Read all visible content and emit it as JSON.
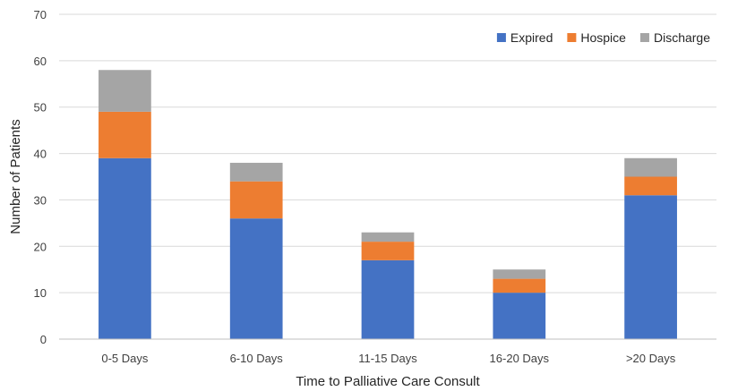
{
  "chart_data": {
    "type": "bar",
    "stacked": true,
    "categories": [
      "0-5 Days",
      "6-10 Days",
      "11-15 Days",
      "16-20 Days",
      ">20 Days"
    ],
    "series": [
      {
        "name": "Expired",
        "color": "#4472c4",
        "values": [
          39,
          26,
          17,
          10,
          31
        ]
      },
      {
        "name": "Hospice",
        "color": "#ed7d31",
        "values": [
          10,
          8,
          4,
          3,
          4
        ]
      },
      {
        "name": "Discharge",
        "color": "#a5a5a5",
        "values": [
          9,
          4,
          2,
          2,
          4
        ]
      }
    ],
    "xlabel": "Time to Palliative Care Consult",
    "ylabel": "Number of Patients",
    "ylim": [
      0,
      70
    ],
    "yticks": [
      0,
      10,
      20,
      30,
      40,
      50,
      60,
      70
    ],
    "grid": true,
    "legend_position": "top-right"
  }
}
